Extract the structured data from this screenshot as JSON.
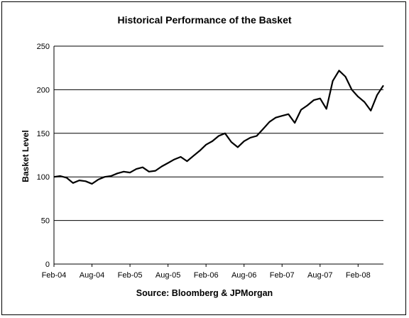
{
  "chart_data": {
    "type": "line",
    "title": "Historical Performance of the Basket",
    "ylabel": "Basket Level",
    "source": "Source: Bloomberg & JPMorgan",
    "ylim": [
      0,
      250
    ],
    "yticks": [
      0,
      50,
      100,
      150,
      200,
      250
    ],
    "xlim": [
      "2004-02",
      "2008-06"
    ],
    "xticks": [
      "Feb-04",
      "Aug-04",
      "Feb-05",
      "Aug-05",
      "Feb-06",
      "Aug-06",
      "Feb-07",
      "Aug-07",
      "Feb-08"
    ],
    "grid": "horizontal",
    "line_color": "#000000",
    "series": [
      {
        "x": [
          "2004-02",
          "2004-03",
          "2004-04",
          "2004-05",
          "2004-06",
          "2004-07",
          "2004-08",
          "2004-09",
          "2004-10",
          "2004-11",
          "2004-12",
          "2005-01",
          "2005-02",
          "2005-03",
          "2005-04",
          "2005-05",
          "2005-06",
          "2005-07",
          "2005-08",
          "2005-09",
          "2005-10",
          "2005-11",
          "2005-12",
          "2006-01",
          "2006-02",
          "2006-03",
          "2006-04",
          "2006-05",
          "2006-06",
          "2006-07",
          "2006-08",
          "2006-09",
          "2006-10",
          "2006-11",
          "2006-12",
          "2007-01",
          "2007-02",
          "2007-03",
          "2007-04",
          "2007-05",
          "2007-06",
          "2007-07",
          "2007-08",
          "2007-09",
          "2007-10",
          "2007-11",
          "2007-12",
          "2008-01",
          "2008-02",
          "2008-03",
          "2008-04",
          "2008-05",
          "2008-06"
        ],
        "values": [
          100,
          101,
          99,
          93,
          96,
          95,
          92,
          97,
          100,
          101,
          104,
          106,
          105,
          109,
          111,
          106,
          107,
          112,
          116,
          120,
          123,
          118,
          124,
          130,
          137,
          141,
          147,
          150,
          140,
          134,
          141,
          145,
          147,
          155,
          163,
          168,
          170,
          172,
          162,
          177,
          182,
          188,
          190,
          178,
          210,
          222,
          215,
          200,
          192,
          186,
          176,
          194,
          205
        ]
      }
    ]
  }
}
